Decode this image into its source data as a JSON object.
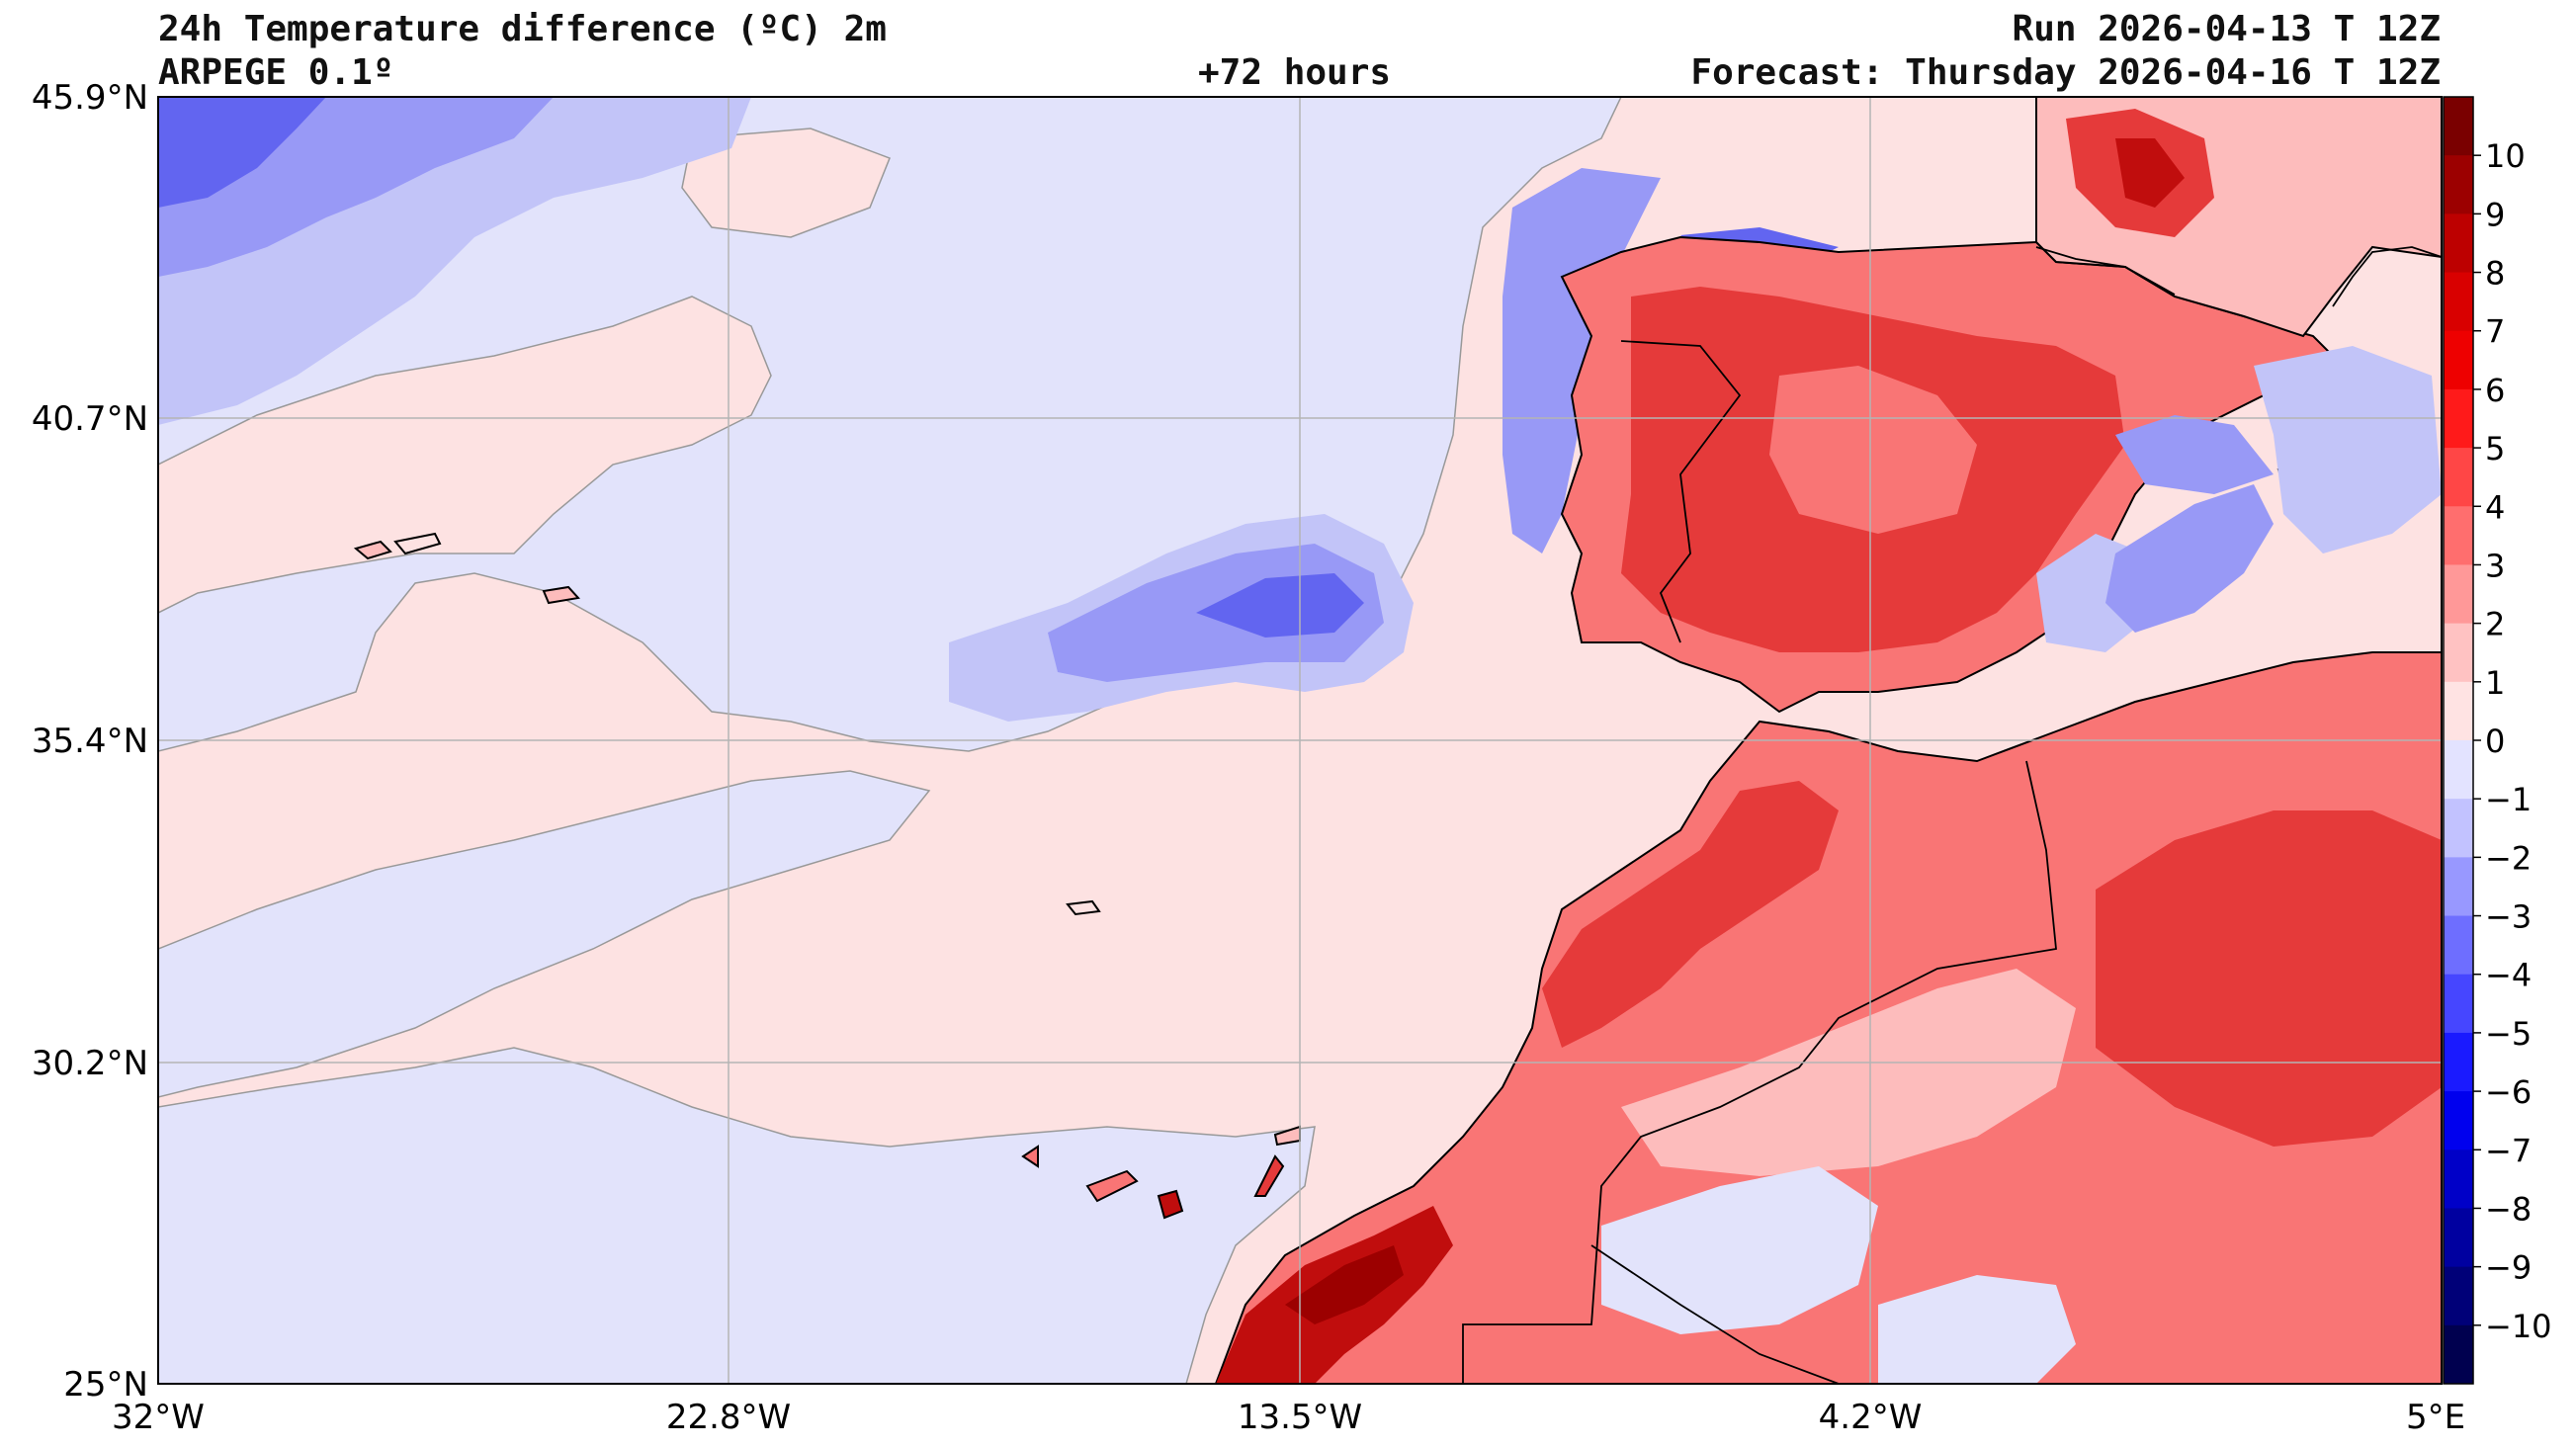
{
  "header": {
    "title": "24h Temperature difference (ºC) 2m",
    "model": "ARPEGE 0.1º",
    "lead": "+72 hours",
    "run": "Run 2026-04-13 T 12Z",
    "forecast": "Forecast: Thursday 2026-04-16 T 12Z"
  },
  "axes": {
    "lon_ticks": [
      "32°W",
      "22.8°W",
      "13.5°W",
      "4.2°W",
      "5°E"
    ],
    "lat_ticks": [
      "45.9°N",
      "40.7°N",
      "35.4°N",
      "30.2°N",
      "25°N"
    ],
    "grid": true
  },
  "colorbar": {
    "labels": [
      "10",
      "9",
      "8",
      "7",
      "6",
      "5",
      "4",
      "3",
      "2",
      "1",
      "0",
      "−1",
      "−2",
      "−3",
      "−4",
      "−5",
      "−6",
      "−7",
      "−8",
      "−9",
      "−10"
    ],
    "colors": [
      "#7a0000",
      "#9c0000",
      "#bd0000",
      "#d90000",
      "#ee0000",
      "#ff1a1a",
      "#ff4646",
      "#ff6e6e",
      "#ff9898",
      "#ffc2c2",
      "#ffe3e3",
      "#e3e3ff",
      "#c2c2ff",
      "#9898ff",
      "#6e6eff",
      "#4646ff",
      "#1a1aff",
      "#0000ee",
      "#0000c8",
      "#0000a0",
      "#000078",
      "#00004f"
    ],
    "range": [
      -11,
      11
    ]
  },
  "palette": {
    "sea_neutral_pos": "#fde2e2",
    "sea_neutral_neg": "#e2e3fb",
    "light_red": "#fdbcbc",
    "mid_red": "#f97575",
    "strong_red": "#e53a3a",
    "deep_red": "#c00d0d",
    "light_blue": "#c2c4f8",
    "mid_blue": "#9899f6",
    "strong_blue": "#6265f0",
    "deep_blue": "#2f36e6",
    "coast": "#000000",
    "grid": "#b4b4b4"
  }
}
